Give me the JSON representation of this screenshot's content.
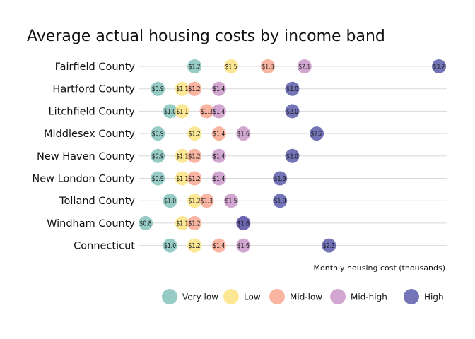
{
  "chart_data": {
    "type": "scatter",
    "title": "Average actual housing costs by income band",
    "xlabel": "Monthly housing cost (thousands)",
    "ylabel": "",
    "xlim": [
      0.8,
      3.2
    ],
    "grid": "horizontal",
    "legend_position": "bottom",
    "categories": [
      "Fairfield County",
      "Hartford County",
      "Litchfield County",
      "Middlesex County",
      "New Haven County",
      "New London County",
      "Tolland County",
      "Windham County",
      "Connecticut"
    ],
    "series": [
      {
        "name": "Very low",
        "color": "#7fbfb9",
        "values": [
          1.2,
          0.9,
          1.0,
          0.9,
          0.9,
          0.9,
          1.0,
          0.8,
          1.0
        ],
        "labels": [
          "$1.2",
          "$0.9",
          "$1.0",
          "$0.9",
          "$0.9",
          "$0.9",
          "$1.0",
          "$0.8",
          "$1.0"
        ]
      },
      {
        "name": "Low",
        "color": "#fbe27d",
        "values": [
          1.5,
          1.1,
          1.1,
          1.2,
          1.1,
          1.1,
          1.2,
          1.1,
          1.2
        ],
        "labels": [
          "$1.5",
          "$1.1",
          "$1.1",
          "$1.2",
          "$1.1",
          "$1.1",
          "$1.2",
          "$1.1",
          "$1.2"
        ]
      },
      {
        "name": "Mid-low",
        "color": "#f8a58e",
        "values": [
          1.8,
          1.2,
          1.3,
          1.4,
          1.2,
          1.2,
          1.3,
          1.2,
          1.4
        ],
        "labels": [
          "$1.8",
          "$1.2",
          "$1.3",
          "$1.4",
          "$1.2",
          "$1.2",
          "$1.3",
          "$1.2",
          "$1.4"
        ]
      },
      {
        "name": "Mid-high",
        "color": "#c793c6",
        "values": [
          2.1,
          1.4,
          1.4,
          1.6,
          1.4,
          1.4,
          1.5,
          1.6,
          1.6
        ],
        "labels": [
          "$2.1",
          "$1.4",
          "$1.4",
          "$1.6",
          "$1.4",
          "$1.4",
          "$1.5",
          "$1.6",
          "$1.6"
        ]
      },
      {
        "name": "High",
        "color": "#5557a8",
        "values": [
          3.2,
          2.0,
          2.0,
          2.2,
          2.0,
          1.9,
          1.9,
          1.6,
          2.3
        ],
        "labels": [
          "$3.2",
          "$2.0",
          "$2.0",
          "$2.2",
          "$2.0",
          "$1.9",
          "$1.9",
          "$1.6",
          "$2.3"
        ]
      }
    ]
  }
}
